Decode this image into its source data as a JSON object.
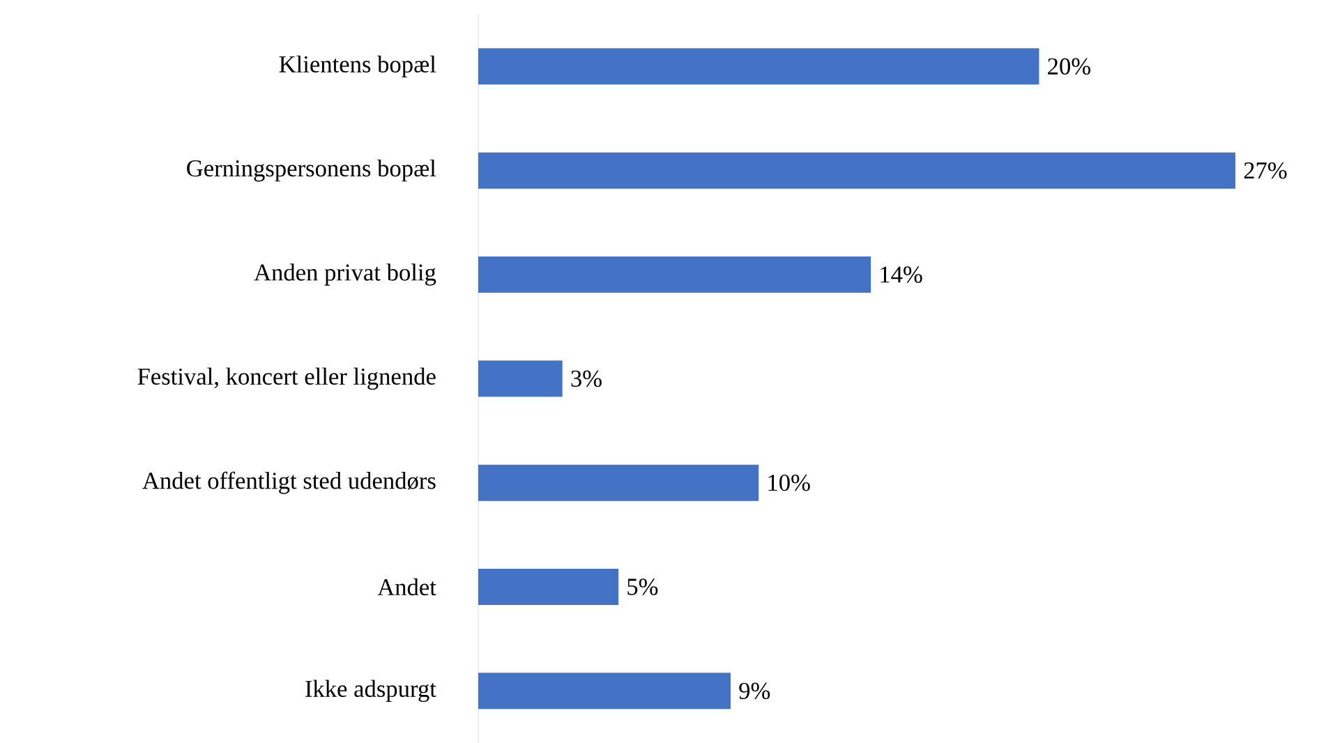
{
  "chart_data": {
    "type": "bar",
    "orientation": "horizontal",
    "categories": [
      "Klientens bopæl",
      "Gerningspersonens bopæl",
      "Anden privat bolig",
      "Festival, koncert eller lignende",
      "Andet offentligt sted udendørs",
      "Andet",
      "Ikke adspurgt"
    ],
    "values": [
      20,
      27,
      14,
      3,
      10,
      5,
      9
    ],
    "value_labels": [
      "20%",
      "27%",
      "14%",
      "3%",
      "10%",
      "5%",
      "9%"
    ],
    "color": "#4472c4"
  }
}
